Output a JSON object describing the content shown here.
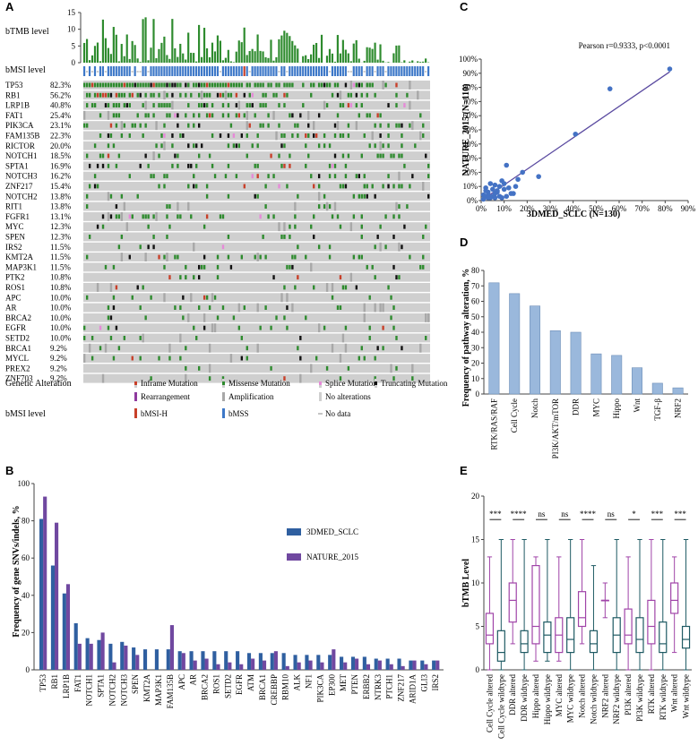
{
  "panels": {
    "a": "A",
    "b": "B",
    "c": "C",
    "d": "D",
    "e": "E"
  },
  "colors": {
    "green": "#2e8b2e",
    "blue": "#3d78c8",
    "red": "#c8402a",
    "purple": "#8e3a9e",
    "pink": "#e68ad8",
    "grey": "#cfcfcf",
    "darkgrey": "#a8a8a8",
    "bar_b1": "#2f5fa0",
    "bar_b2": "#7048a0",
    "bar_d": "#9ab8dc",
    "box_purple": "#a044a8",
    "box_teal": "#1e5a63",
    "scatter": "#4472c4",
    "line": "#5a4aa0"
  },
  "panel_a": {
    "tmb_label": "bTMB level",
    "msi_label": "bMSI level",
    "tmb_ticks": [
      "15",
      "10",
      "5",
      "0"
    ],
    "genes": [
      {
        "name": "TP53",
        "pct": "82.3%",
        "freq": 0.823
      },
      {
        "name": "RB1",
        "pct": "56.2%",
        "freq": 0.562
      },
      {
        "name": "LRP1B",
        "pct": "40.8%",
        "freq": 0.408
      },
      {
        "name": "FAT1",
        "pct": "25.4%",
        "freq": 0.254
      },
      {
        "name": "PIK3CA",
        "pct": "23.1%",
        "freq": 0.231
      },
      {
        "name": "FAM135B",
        "pct": "22.3%",
        "freq": 0.223
      },
      {
        "name": "RICTOR",
        "pct": "20.0%",
        "freq": 0.2
      },
      {
        "name": "NOTCH1",
        "pct": "18.5%",
        "freq": 0.185
      },
      {
        "name": "SPTA1",
        "pct": "16.9%",
        "freq": 0.169
      },
      {
        "name": "NOTCH3",
        "pct": "16.2%",
        "freq": 0.162
      },
      {
        "name": "ZNF217",
        "pct": "15.4%",
        "freq": 0.154
      },
      {
        "name": "NOTCH2",
        "pct": "13.8%",
        "freq": 0.138
      },
      {
        "name": "RIT1",
        "pct": "13.8%",
        "freq": 0.138
      },
      {
        "name": "FGFR1",
        "pct": "13.1%",
        "freq": 0.131
      },
      {
        "name": "MYC",
        "pct": "12.3%",
        "freq": 0.123
      },
      {
        "name": "SPEN",
        "pct": "12.3%",
        "freq": 0.123
      },
      {
        "name": "IRS2",
        "pct": "11.5%",
        "freq": 0.115
      },
      {
        "name": "KMT2A",
        "pct": "11.5%",
        "freq": 0.115
      },
      {
        "name": "MAP3K1",
        "pct": "11.5%",
        "freq": 0.115
      },
      {
        "name": "PTK2",
        "pct": "10.8%",
        "freq": 0.108
      },
      {
        "name": "ROS1",
        "pct": "10.8%",
        "freq": 0.108
      },
      {
        "name": "APC",
        "pct": "10.0%",
        "freq": 0.1
      },
      {
        "name": "AR",
        "pct": "10.0%",
        "freq": 0.1
      },
      {
        "name": "BRCA2",
        "pct": "10.0%",
        "freq": 0.1
      },
      {
        "name": "EGFR",
        "pct": "10.0%",
        "freq": 0.1
      },
      {
        "name": "SETD2",
        "pct": "10.0%",
        "freq": 0.1
      },
      {
        "name": "BRCA1",
        "pct": "9.2%",
        "freq": 0.092
      },
      {
        "name": "MYCL",
        "pct": "9.2%",
        "freq": 0.092
      },
      {
        "name": "PREX2",
        "pct": "9.2%",
        "freq": 0.092
      },
      {
        "name": "ZNF703",
        "pct": "9.2%",
        "freq": 0.092
      }
    ],
    "legend_title": "Genetic Alteration",
    "legend_items": [
      "Inframe Mutation",
      "Missense Mutation",
      "Splice Mutation",
      "Truncating Mutation",
      "Rearrangement",
      "Amplification",
      "No alterations"
    ],
    "msi_legend_title": "bMSI level",
    "msi_legend_items": [
      "bMSI-H",
      "bMSS",
      "No data"
    ]
  },
  "chart_data": [
    {
      "panel": "B",
      "type": "bar",
      "ylabel": "Frequency of gene SNVs/indels, %",
      "ylim": [
        0,
        100
      ],
      "yticks": [
        "0",
        "20",
        "40",
        "60",
        "80",
        "100"
      ],
      "categories": [
        "TP53",
        "RB1",
        "LRP1B",
        "FAT1",
        "NOTCH1",
        "SPTA1",
        "NOTCH2",
        "NOTCH3",
        "SPEN",
        "KMT2A",
        "MAP3K1",
        "FAM135B",
        "APC",
        "AR",
        "BRCA2",
        "ROS1",
        "SETD2",
        "EGFR",
        "ATM",
        "BRCA1",
        "CREBBP",
        "RBM10",
        "ALK",
        "NF1",
        "PIK3CA",
        "EP300",
        "MET",
        "PTEN",
        "ERBB2",
        "NTRK3",
        "PTCH1",
        "ZNF217",
        "ARID1A",
        "GLI3",
        "IRS2"
      ],
      "series": [
        {
          "name": "3DMED_SCLC",
          "values": [
            81,
            56,
            41,
            25,
            17,
            16,
            14,
            15,
            12,
            11,
            11,
            11,
            10,
            10,
            10,
            10,
            10,
            10,
            9,
            9,
            9,
            9,
            8,
            8,
            8,
            8,
            7,
            7,
            7,
            6,
            6,
            6,
            5,
            5,
            5
          ]
        },
        {
          "name": "NATURE_2015",
          "values": [
            93,
            79,
            46,
            14,
            14,
            20,
            4,
            13,
            8,
            0,
            0,
            24,
            9,
            5,
            6,
            3,
            4,
            3,
            6,
            5,
            10,
            2,
            4,
            5,
            4,
            11,
            4,
            6,
            3,
            5,
            3,
            2,
            5,
            3,
            5
          ]
        }
      ]
    },
    {
      "panel": "C",
      "type": "scatter",
      "title": "Pearson r=0.9333, p<0.0001",
      "xlabel": "3DMED_SCLC (N=130)",
      "ylabel": "NATURE_2015 (N=110)",
      "xlim": [
        0,
        90
      ],
      "ylim": [
        0,
        100
      ],
      "xticks": [
        "0%",
        "10%",
        "20%",
        "30%",
        "40%",
        "50%",
        "60%",
        "70%",
        "80%",
        "90%"
      ],
      "yticks": [
        "0%",
        "10%",
        "20%",
        "30%",
        "40%",
        "50%",
        "60%",
        "70%",
        "80%",
        "90%",
        "100%"
      ],
      "x": [
        82,
        56,
        41,
        25,
        18,
        16,
        15,
        11,
        10,
        10,
        9,
        8,
        7,
        6,
        5,
        4,
        3,
        2,
        12,
        14,
        8,
        6,
        4,
        3,
        2,
        1,
        9,
        7,
        5,
        1,
        2,
        3,
        13,
        11,
        6
      ],
      "y": [
        93,
        79,
        47,
        17,
        20,
        15,
        10,
        25,
        12,
        8,
        14,
        10,
        6,
        5,
        8,
        12,
        4,
        3,
        9,
        5,
        3,
        11,
        2,
        6,
        9,
        4,
        2,
        7,
        3,
        1,
        7,
        2,
        5,
        3,
        2
      ],
      "fit": [
        [
          0,
          0
        ],
        [
          82,
          91
        ]
      ]
    },
    {
      "panel": "D",
      "type": "bar",
      "ylabel": "Frequency of pathway alteration, %",
      "ylim": [
        0,
        80
      ],
      "yticks": [
        "0",
        "10",
        "20",
        "30",
        "40",
        "50",
        "60",
        "70",
        "80"
      ],
      "categories": [
        "RTK/RAS/RAF",
        "Cell Cycle",
        "Notch",
        "PI3K/AKT/mTOR",
        "DDR",
        "MYC",
        "Hippo",
        "Wnt",
        "TGF-β",
        "NRF2"
      ],
      "values": [
        72,
        65,
        57,
        41,
        40,
        26,
        25,
        17,
        7,
        4
      ]
    },
    {
      "panel": "E",
      "type": "box",
      "ylabel": "bTMB Level",
      "ylim": [
        0,
        20
      ],
      "yticks": [
        "0",
        "5",
        "10",
        "15",
        "20"
      ],
      "categories": [
        "Cell Cycle altered",
        "Cell Cycle wildtype",
        "DDR altered",
        "DDR wildtype",
        "Hippo altered",
        "Hippo wildtype",
        "MYC altered",
        "MYC wildtype",
        "Notch altered",
        "Notch wildtype",
        "NRF2 altered",
        "NRF2 wildtype",
        "PI3K altered",
        "PI3K wildtype",
        "RTK altered",
        "RTK wildtype",
        "Wnt altered",
        "Wnt wildtype"
      ],
      "boxes": [
        {
          "min": 0,
          "q1": 3,
          "median": 4,
          "q3": 6.5,
          "max": 13
        },
        {
          "min": 0,
          "q1": 1,
          "median": 2,
          "q3": 4.5,
          "max": 15
        },
        {
          "min": 3,
          "q1": 5.5,
          "median": 8,
          "q3": 10,
          "max": 15
        },
        {
          "min": 0,
          "q1": 2,
          "median": 3,
          "q3": 4.5,
          "max": 15
        },
        {
          "min": 1,
          "q1": 3,
          "median": 5,
          "q3": 12,
          "max": 13
        },
        {
          "min": 1,
          "q1": 2,
          "median": 4,
          "q3": 5.5,
          "max": 15
        },
        {
          "min": 1,
          "q1": 2,
          "median": 4,
          "q3": 6,
          "max": 13
        },
        {
          "min": 0,
          "q1": 2,
          "median": 3.5,
          "q3": 6,
          "max": 15
        },
        {
          "min": 3,
          "q1": 5,
          "median": 6,
          "q3": 9,
          "max": 15
        },
        {
          "min": 0,
          "q1": 2,
          "median": 3,
          "q3": 4.5,
          "max": 12
        },
        {
          "min": 6,
          "q1": 8,
          "median": 8,
          "q3": 8,
          "max": 10
        },
        {
          "min": 0,
          "q1": 2,
          "median": 4,
          "q3": 6,
          "max": 15
        },
        {
          "min": 0,
          "q1": 3,
          "median": 4,
          "q3": 7,
          "max": 13
        },
        {
          "min": 0,
          "q1": 2,
          "median": 3.5,
          "q3": 6,
          "max": 15
        },
        {
          "min": 0,
          "q1": 3,
          "median": 5,
          "q3": 8,
          "max": 15
        },
        {
          "min": 0,
          "q1": 2,
          "median": 3,
          "q3": 5.5,
          "max": 15
        },
        {
          "min": 2,
          "q1": 6.5,
          "median": 8,
          "q3": 10,
          "max": 13
        },
        {
          "min": 0,
          "q1": 2.5,
          "median": 3.5,
          "q3": 5,
          "max": 15
        }
      ],
      "significance": [
        "***",
        "****",
        "ns",
        "ns",
        "****",
        "ns",
        "*",
        "***",
        "***"
      ]
    }
  ]
}
